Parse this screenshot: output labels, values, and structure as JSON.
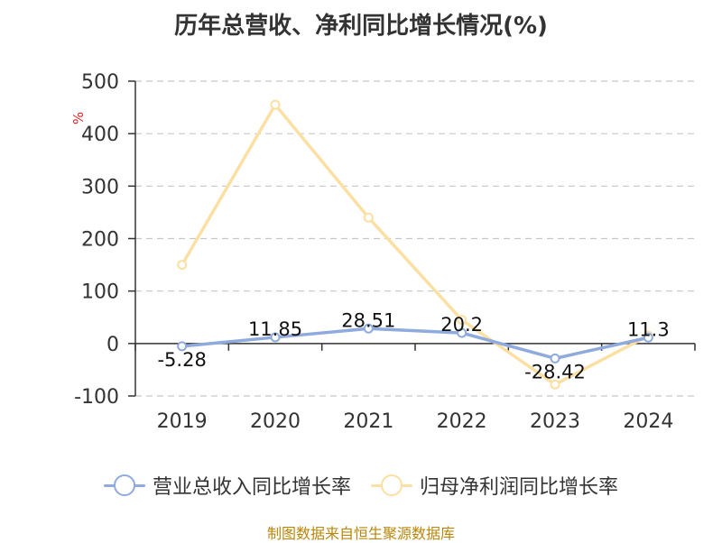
{
  "title": "历年总营收、净利同比增长情况(%)",
  "source": "制图数据来自恒生聚源数据库",
  "chart_data": {
    "type": "line",
    "title": "历年总营收、净利同比增长情况(%)",
    "ylabel": "%",
    "categories": [
      "2019",
      "2020",
      "2021",
      "2022",
      "2023",
      "2024"
    ],
    "ylim": [
      -100,
      500
    ],
    "yticks": [
      -100,
      0,
      100,
      200,
      300,
      400,
      500
    ],
    "grid": true,
    "legend_position": "bottom",
    "series": [
      {
        "name": "营业总收入同比增长率",
        "color": "#8FAADC",
        "values": [
          -5.28,
          11.85,
          28.51,
          20.2,
          -28.42,
          11.3
        ],
        "labels": [
          "-5.28",
          "11.85",
          "28.51",
          "20.2",
          "-28.42",
          "11.3"
        ]
      },
      {
        "name": "归母净利润同比增长率",
        "color": "#FCDFA3",
        "values": [
          150,
          455,
          240,
          45,
          -78,
          15
        ]
      }
    ]
  }
}
